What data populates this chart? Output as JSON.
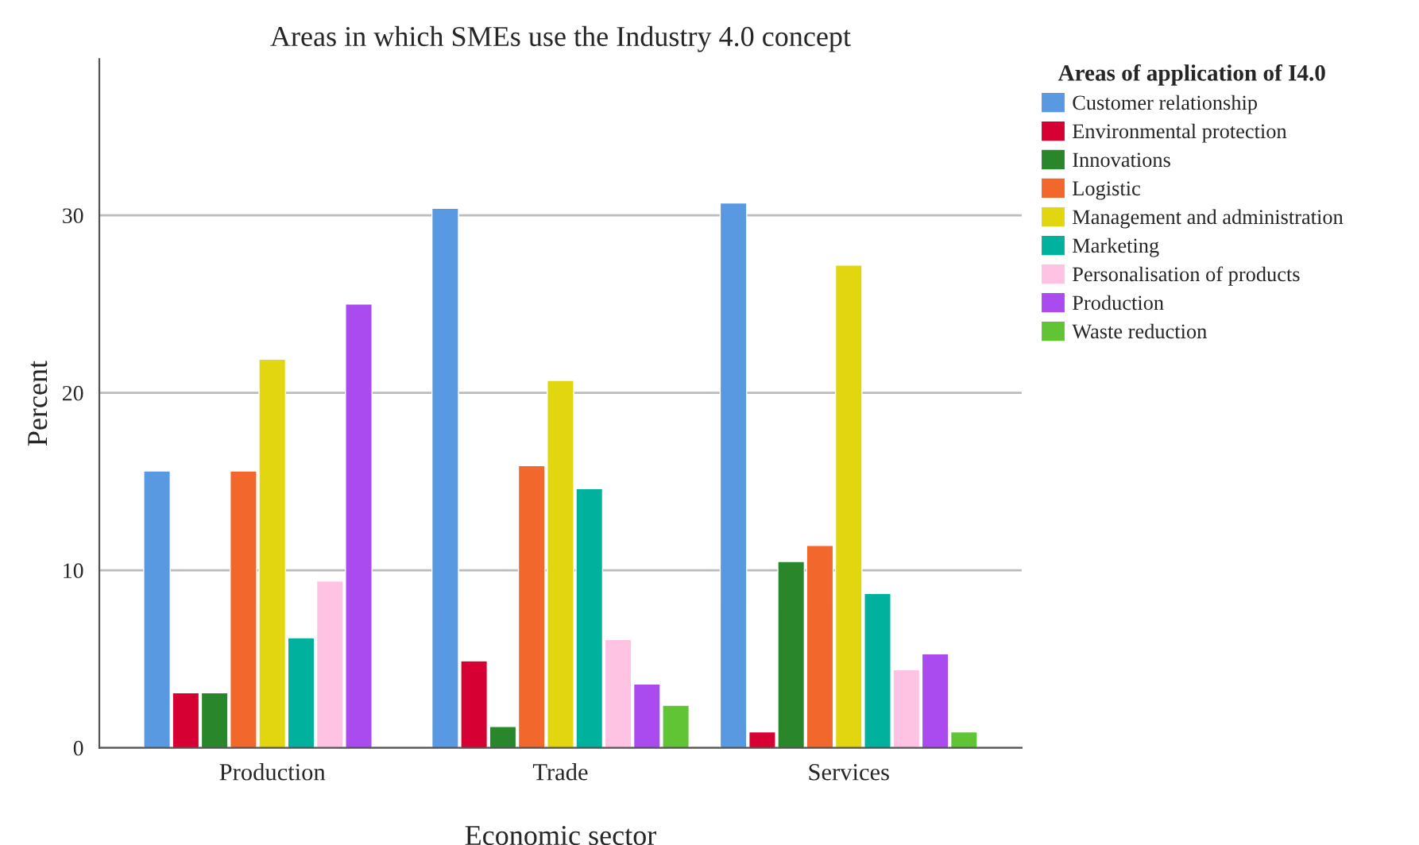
{
  "chart_data": {
    "type": "bar",
    "title": "Areas in which SMEs use the Industry 4.0 concept",
    "xlabel": "Economic sector",
    "ylabel": "Percent",
    "legend_title": "Areas of application of I4.0",
    "categories": [
      "Production",
      "Trade",
      "Services"
    ],
    "series": [
      {
        "name": "Customer relationship",
        "color": "#5899e2",
        "values": [
          15.6,
          30.4,
          30.7
        ]
      },
      {
        "name": "Environmental protection",
        "color": "#d60033",
        "values": [
          3.1,
          4.9,
          0.9
        ]
      },
      {
        "name": "Innovations",
        "color": "#2a862a",
        "values": [
          3.1,
          1.2,
          10.5
        ]
      },
      {
        "name": "Logistic",
        "color": "#f2682c",
        "values": [
          15.6,
          15.9,
          11.4
        ]
      },
      {
        "name": "Management and administration",
        "color": "#e1d60f",
        "values": [
          21.9,
          20.7,
          27.2
        ]
      },
      {
        "name": "Marketing",
        "color": "#00b29e",
        "values": [
          6.2,
          14.6,
          8.7
        ]
      },
      {
        "name": "Personalisation of products",
        "color": "#fec3e2",
        "values": [
          9.4,
          6.1,
          4.4
        ]
      },
      {
        "name": "Production",
        "color": "#aa4bf0",
        "values": [
          25.0,
          3.6,
          5.3
        ]
      },
      {
        "name": "Waste reduction",
        "color": "#61c435",
        "values": [
          null,
          2.4,
          0.9
        ]
      }
    ],
    "ylim": [
      0,
      38.8
    ],
    "yticks": [
      0,
      10,
      20,
      30
    ],
    "grid": "y",
    "legend": "right"
  }
}
